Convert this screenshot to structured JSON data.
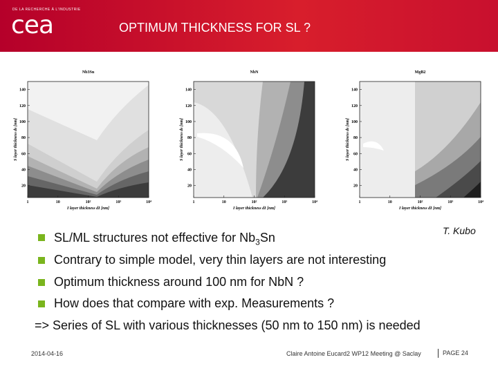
{
  "header": {
    "org": "DE LA RECHERCHE À L'INDUSTRIE",
    "logo": "cea",
    "title": "OPTIMUM THICKNESS FOR SL ?"
  },
  "plots": [
    {
      "title": "Nb3Sn",
      "y_label": "S layer thickness ds [nm]",
      "x_label": "I layer thickness dI [nm]",
      "ylim": [
        5,
        150
      ],
      "yticks": [
        20,
        40,
        60,
        80,
        100,
        120,
        140
      ],
      "xlim": [
        1,
        10000
      ],
      "xticks": [
        {
          "value": 1,
          "label": "1"
        },
        {
          "value": 10,
          "label": "10"
        },
        {
          "value": 100,
          "label": "10²"
        },
        {
          "value": 1000,
          "label": "10³"
        },
        {
          "value": 10000,
          "label": "10⁴"
        }
      ]
    },
    {
      "title": "NbN",
      "y_label": "S layer thickness ds [nm]",
      "x_label": "I layer thickness dI [nm]",
      "ylim": [
        5,
        150
      ],
      "yticks": [
        20,
        40,
        60,
        80,
        100,
        120,
        140
      ],
      "xlim": [
        1,
        10000
      ],
      "xticks": [
        {
          "value": 1,
          "label": "1"
        },
        {
          "value": 10,
          "label": "10"
        },
        {
          "value": 100,
          "label": "10²"
        },
        {
          "value": 1000,
          "label": "10³"
        },
        {
          "value": 10000,
          "label": "10⁴"
        }
      ]
    },
    {
      "title": "MgB2",
      "y_label": "S layer thickness ds [nm]",
      "x_label": "I layer thickness dI [nm]",
      "ylim": [
        5,
        150
      ],
      "yticks": [
        20,
        40,
        60,
        80,
        100,
        120,
        140
      ],
      "xlim": [
        1,
        10000
      ],
      "xticks": [
        {
          "value": 1,
          "label": "1"
        },
        {
          "value": 10,
          "label": "10"
        },
        {
          "value": 100,
          "label": "10²"
        },
        {
          "value": 1000,
          "label": "10³"
        },
        {
          "value": 10000,
          "label": "10⁴"
        }
      ]
    }
  ],
  "credit": "T. Kubo",
  "bullets": [
    {
      "text": "SL/ML structures not effective for Nb",
      "sub": "3",
      "tail": "Sn"
    },
    {
      "text": "Contrary to simple model, very thin layers are not interesting"
    },
    {
      "text": "Optimum thickness around 100 nm for NbN ?"
    },
    {
      "text": "How does that compare with exp. Measurements ?"
    }
  ],
  "conclusion": "=> Series of SL with various thicknesses (50 nm to 150 nm) is needed",
  "footer": {
    "date": "2014-04-16",
    "meeting": "Claire Antoine Eucard2 WP12 Meeting @ Saclay",
    "page": "PAGE 24"
  }
}
